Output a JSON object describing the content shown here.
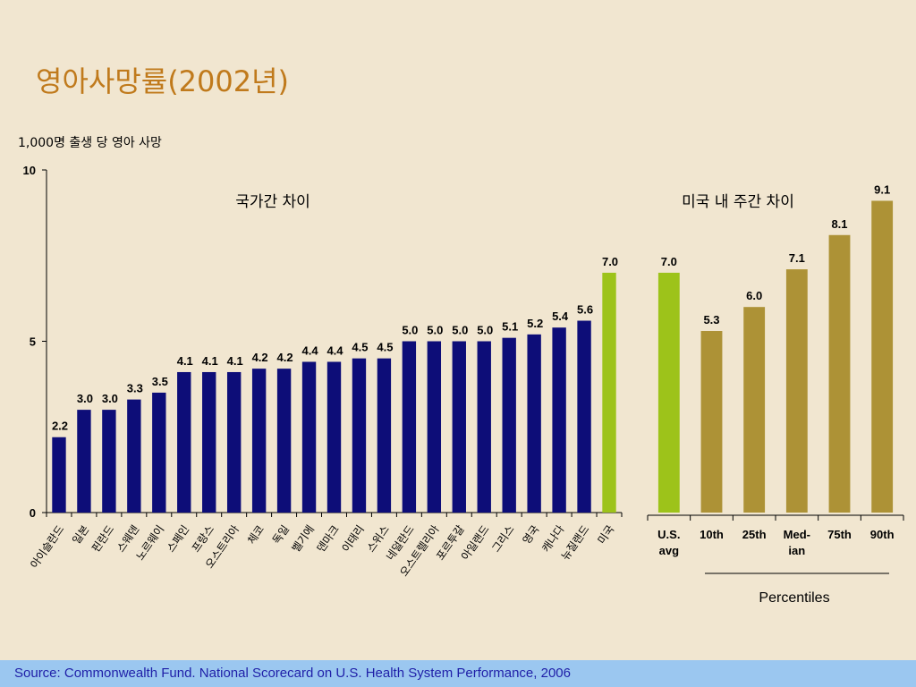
{
  "title": "영아사망률(2002년)",
  "footer": {
    "source": "Source: Commonwealth Fund. National Scorecard on U.S. Health System Performance, 2006"
  },
  "colors": {
    "background": "#f1e6d0",
    "international_bar": "#0d0d78",
    "us_bar": "#9dc31a",
    "state_bar": "#ad9236",
    "title": "#c07a1c",
    "footer_band": "#9bc7f0",
    "footer_text": "#1f1fa8"
  },
  "chart_data": [
    {
      "type": "bar",
      "subtitle": "국가간 차이",
      "ylabel": "1,000명 출생 당 영아 사망",
      "ylim": [
        0,
        10
      ],
      "yticks": [
        0,
        5,
        10
      ],
      "grid": false,
      "categories": [
        "아이슬란드",
        "일본",
        "핀란드",
        "스웨덴",
        "노르웨이",
        "스페인",
        "프랑스",
        "오스트리아",
        "체코",
        "독일",
        "벨기에",
        "덴마크",
        "이태리",
        "스위스",
        "네덜란드",
        "오스트렐리아",
        "포르투갈",
        "아일랜드",
        "그리스",
        "영국",
        "캐나다",
        "뉴질랜드",
        "미국"
      ],
      "values": [
        2.2,
        3.0,
        3.0,
        3.3,
        3.5,
        4.1,
        4.1,
        4.1,
        4.2,
        4.2,
        4.4,
        4.4,
        4.5,
        4.5,
        5.0,
        5.0,
        5.0,
        5.0,
        5.1,
        5.2,
        5.4,
        5.6,
        7.0
      ],
      "value_labels": [
        "2.2",
        "3.0",
        "3.0",
        "3.3",
        "3.5",
        "4.1",
        "4.1",
        "4.1",
        "4.2",
        "4.2",
        "4.4",
        "4.4",
        "4.5",
        "4.5",
        "5.0",
        "5.0",
        "5.0",
        "5.0",
        "5.1",
        "5.2",
        "5.4",
        "5.6",
        "7.0"
      ],
      "highlight_category": "미국"
    },
    {
      "type": "bar",
      "subtitle": "미국 내 주간 차이",
      "xlabel": "Percentiles",
      "ylim": [
        0,
        10
      ],
      "grid": false,
      "categories": [
        [
          "U.S.",
          "avg"
        ],
        [
          "10th"
        ],
        [
          "25th"
        ],
        [
          "Med-",
          "ian"
        ],
        [
          "75th"
        ],
        [
          "90th"
        ]
      ],
      "values": [
        7.0,
        5.3,
        6.0,
        7.1,
        8.1,
        9.1
      ],
      "value_labels": [
        "7.0",
        "5.3",
        "6.0",
        "7.1",
        "8.1",
        "9.1"
      ],
      "highlight_category": "U.S. avg"
    }
  ]
}
